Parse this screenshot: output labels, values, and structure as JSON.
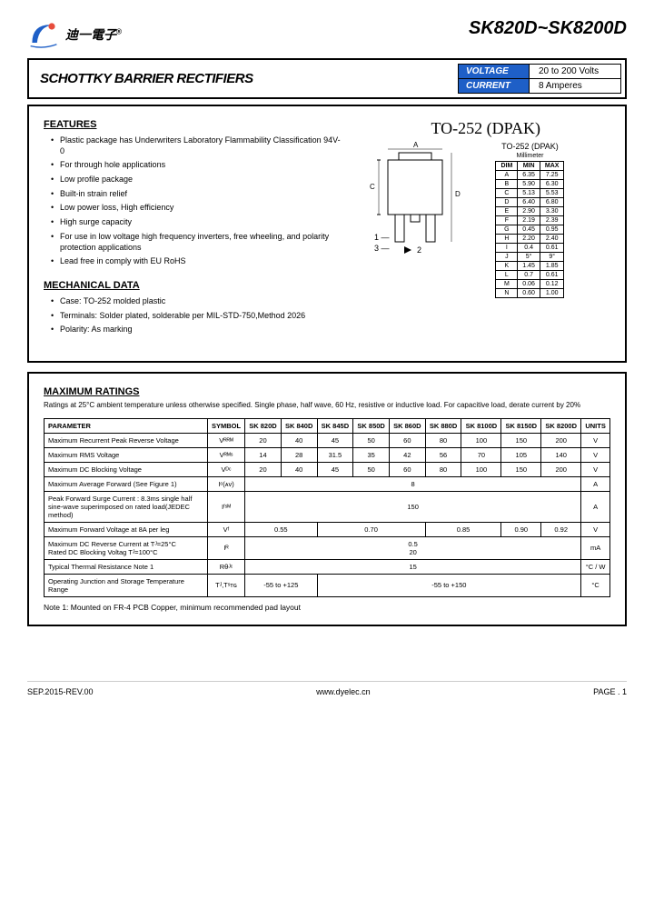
{
  "header": {
    "company_cn": "迪一電子",
    "reg": "®",
    "part_range": "SK820D~SK8200D"
  },
  "title_box": {
    "title": "SCHOTTKY BARRIER RECTIFIERS",
    "specs": [
      {
        "label": "VOLTAGE",
        "value": "20 to 200 Volts"
      },
      {
        "label": "CURRENT",
        "value": "8 Amperes"
      }
    ]
  },
  "features": {
    "title": "FEATURES",
    "items": [
      "Plastic package has Underwriters Laboratory Flammability Classification 94V-0",
      "For through hole applications",
      "Low profile package",
      "Built-in strain relief",
      "Low power loss, High efficiency",
      "High surge capacity",
      "For use in low voltage high frequency inverters, free wheeling, and polarity protection applications",
      "Lead free in comply with EU RoHS"
    ]
  },
  "mechanical": {
    "title": "MECHANICAL DATA",
    "items": [
      "Case: TO-252 molded plastic",
      "Terminals: Solder plated, solderable per MIL-STD-750,Method 2026",
      "Polarity: As marking"
    ]
  },
  "package": {
    "title": "TO-252 (DPAK)",
    "dim_title": "TO-252 (DPAK)",
    "dim_sub": "Millimeter",
    "dim_headers": [
      "DIM",
      "MIN",
      "MAX"
    ],
    "dims": [
      [
        "A",
        "6.35",
        "7.25"
      ],
      [
        "B",
        "5.90",
        "6.30"
      ],
      [
        "C",
        "5.13",
        "5.53"
      ],
      [
        "D",
        "6.40",
        "6.80"
      ],
      [
        "E",
        "2.90",
        "3.30"
      ],
      [
        "F",
        "2.19",
        "2.39"
      ],
      [
        "G",
        "0.45",
        "0.95"
      ],
      [
        "H",
        "2.20",
        "2.40"
      ],
      [
        "I",
        "0.4",
        "0.61"
      ],
      [
        "J",
        "5°",
        "9°"
      ],
      [
        "K",
        "1.45",
        "1.85"
      ],
      [
        "L",
        "0.7",
        "0.61"
      ],
      [
        "M",
        "0.06",
        "0.12"
      ],
      [
        "N",
        "0.60",
        "1.00"
      ]
    ],
    "pins": "1 —\n3 —   ▶   2"
  },
  "ratings": {
    "title": "MAXIMUM RATINGS",
    "note": "Ratings at 25°C ambient temperature unless otherwise specified. Single phase, half wave, 60 Hz, resistive or inductive load. For capacitive load, derate current by 20%",
    "columns": [
      "PARAMETER",
      "SYMBOL",
      "SK 820D",
      "SK 840D",
      "SK 845D",
      "SK 850D",
      "SK 860D",
      "SK 880D",
      "SK 8100D",
      "SK 8150D",
      "SK 8200D",
      "UNITS"
    ],
    "rows": [
      {
        "param": "Maximum Recurrent Peak Reverse Voltage",
        "sym": "Vᴿᴿᴹ",
        "vals": [
          "20",
          "40",
          "45",
          "50",
          "60",
          "80",
          "100",
          "150",
          "200"
        ],
        "unit": "V"
      },
      {
        "param": "Maximum RMS Voltage",
        "sym": "Vᴿᴹˢ",
        "vals": [
          "14",
          "28",
          "31.5",
          "35",
          "42",
          "56",
          "70",
          "105",
          "140"
        ],
        "unit": "V"
      },
      {
        "param": "Maximum DC Blocking Voltage",
        "sym": "Vᴰᶜ",
        "vals": [
          "20",
          "40",
          "45",
          "50",
          "60",
          "80",
          "100",
          "150",
          "200"
        ],
        "unit": "V"
      }
    ],
    "span_rows": [
      {
        "param": "Maximum Average Forward (See Figure 1)",
        "sym": "Iᵒ(ᴀᴠ)",
        "span_val": "8",
        "unit": "A"
      },
      {
        "param": "Peak Forward Surge Current : 8.3ms single half sine-wave superimposed on rated load(JEDEC method)",
        "sym": "Iᶠˢᴹ",
        "span_val": "150",
        "unit": "A"
      }
    ],
    "vf_row": {
      "param": "Maximum Forward Voltage at 8A per leg",
      "sym": "Vᶠ",
      "vals": [
        {
          "span": 2,
          "v": "0.55"
        },
        {
          "span": 3,
          "v": "0.70"
        },
        {
          "span": 2,
          "v": "0.85"
        },
        {
          "span": 1,
          "v": "0.90"
        },
        {
          "span": 1,
          "v": "0.92"
        }
      ],
      "unit": "V"
    },
    "ir_row": {
      "param": "Maximum DC Reverse Current at Tᴶ=25°C\nRated DC Blocking Voltag Tᴶ=100°C",
      "sym": "Iᴿ",
      "span_val": "0.5\n20",
      "unit": "mA"
    },
    "thermal_row": {
      "param": "Typical Thermal Resistance Note 1",
      "sym": "Rθᴶᶜ",
      "span_val": "15",
      "unit": "°C / W"
    },
    "temp_row": {
      "param": "Operating Junction and Storage Temperature Range",
      "sym": "Tᴶ,Tˢᴛɢ",
      "vals": [
        {
          "span": 2,
          "v": "-55 to +125"
        },
        {
          "span": 7,
          "v": "-55 to +150"
        }
      ],
      "unit": "°C"
    },
    "footnote": "Note 1: Mounted on FR-4 PCB Copper, minimum recommended pad layout"
  },
  "footer": {
    "left": "SEP.2015-REV.00",
    "center": "www.dyelec.cn",
    "right": "PAGE . 1"
  }
}
